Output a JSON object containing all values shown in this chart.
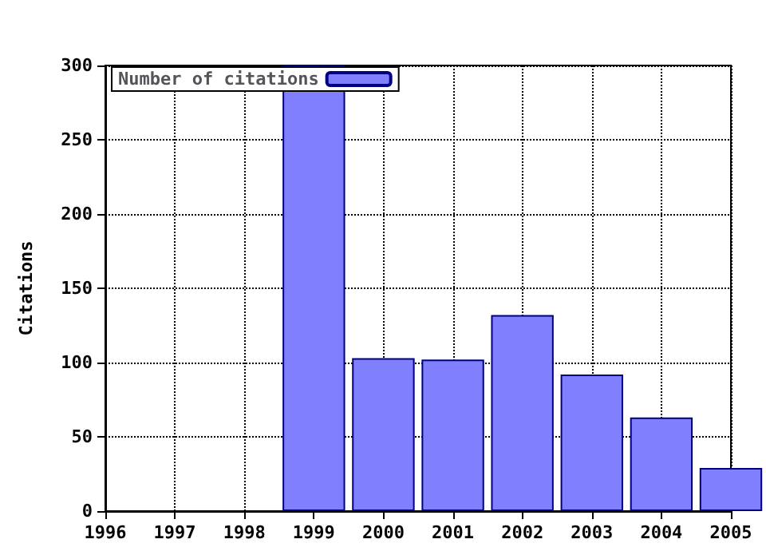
{
  "chart_data": {
    "type": "bar",
    "ylabel": "Citations",
    "x": [
      1999,
      2000,
      2001,
      2002,
      2003,
      2004,
      2005
    ],
    "series": [
      {
        "name": "Number of citations",
        "color": "#8080ff",
        "values": [
          300,
          103,
          102,
          132,
          92,
          63,
          29
        ]
      }
    ],
    "xlim": [
      1996,
      2005
    ],
    "xticks": [
      1996,
      1997,
      1998,
      1999,
      2000,
      2001,
      2002,
      2003,
      2004,
      2005
    ],
    "ylim": [
      0,
      300
    ],
    "yticks": [
      0,
      50,
      100,
      150,
      200,
      250,
      300
    ],
    "grid": true,
    "legend": "top left"
  }
}
